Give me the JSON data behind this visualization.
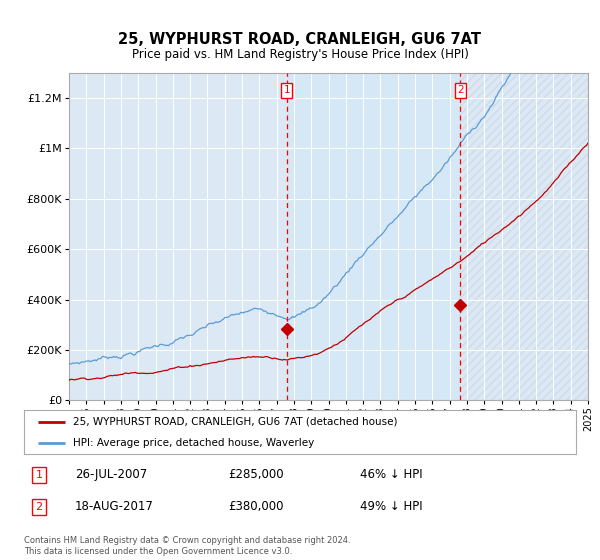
{
  "title": "25, WYPHURST ROAD, CRANLEIGH, GU6 7AT",
  "subtitle": "Price paid vs. HM Land Registry's House Price Index (HPI)",
  "ylim": [
    0,
    1300000
  ],
  "yticks": [
    0,
    200000,
    400000,
    600000,
    800000,
    1000000,
    1200000
  ],
  "ytick_labels": [
    "£0",
    "£200K",
    "£400K",
    "£600K",
    "£800K",
    "£1M",
    "£1.2M"
  ],
  "background_color": "#ffffff",
  "plot_bg_color": "#dce9f5",
  "shade_color": "#ccdff0",
  "grid_color": "#ffffff",
  "hpi_color": "#5b9bd5",
  "price_color": "#c00000",
  "sale1_year": 2007.58,
  "sale1_price": 285000,
  "sale2_year": 2017.63,
  "sale2_price": 380000,
  "legend_line1": "25, WYPHURST ROAD, CRANLEIGH, GU6 7AT (detached house)",
  "legend_line2": "HPI: Average price, detached house, Waverley",
  "table_row1": [
    "1",
    "26-JUL-2007",
    "£285,000",
    "46% ↓ HPI"
  ],
  "table_row2": [
    "2",
    "18-AUG-2017",
    "£380,000",
    "49% ↓ HPI"
  ],
  "footer": "Contains HM Land Registry data © Crown copyright and database right 2024.\nThis data is licensed under the Open Government Licence v3.0.",
  "x_start_year": 1995,
  "x_end_year": 2025
}
